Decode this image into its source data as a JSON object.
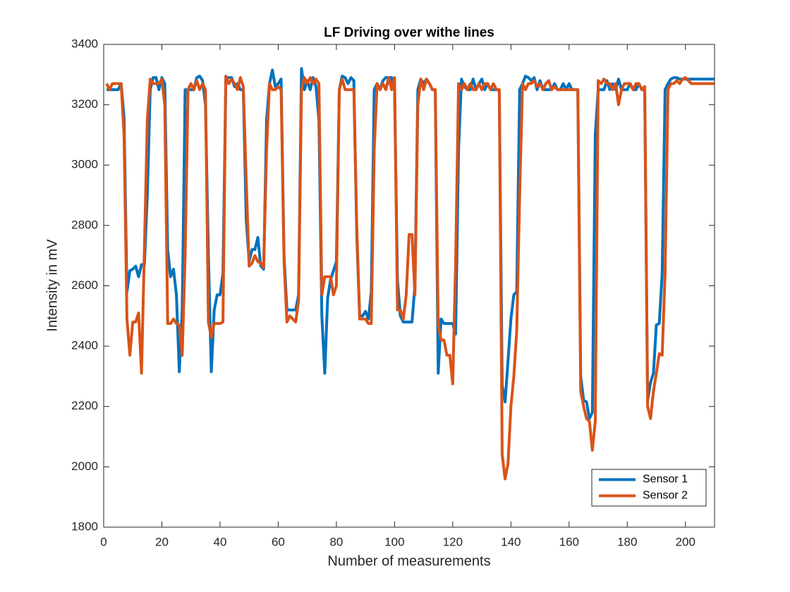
{
  "chart_data": {
    "type": "line",
    "title": "LF Driving over withe lines",
    "x_label": "Number of measurements",
    "y_label": "Intensity in mV",
    "xlim": [
      0,
      210
    ],
    "xticks": [
      0,
      20,
      40,
      60,
      80,
      100,
      120,
      140,
      160,
      180,
      200
    ],
    "ylim": [
      1800,
      3400
    ],
    "yticks": [
      1800,
      2000,
      2200,
      2400,
      2600,
      2800,
      3000,
      3200,
      3400
    ],
    "grid": false,
    "legend_position": "southeast",
    "x": [
      1,
      2,
      3,
      4,
      5,
      6,
      7,
      8,
      9,
      10,
      11,
      12,
      13,
      14,
      15,
      16,
      17,
      18,
      19,
      20,
      21,
      22,
      23,
      24,
      25,
      26,
      27,
      28,
      29,
      30,
      31,
      32,
      33,
      34,
      35,
      36,
      37,
      38,
      39,
      40,
      41,
      42,
      43,
      44,
      45,
      46,
      47,
      48,
      49,
      50,
      51,
      52,
      53,
      54,
      55,
      56,
      57,
      58,
      59,
      60,
      61,
      62,
      63,
      64,
      65,
      66,
      67,
      68,
      69,
      70,
      71,
      72,
      73,
      74,
      75,
      76,
      77,
      78,
      79,
      80,
      81,
      82,
      83,
      84,
      85,
      86,
      87,
      88,
      89,
      90,
      91,
      92,
      93,
      94,
      95,
      96,
      97,
      98,
      99,
      100,
      101,
      102,
      103,
      104,
      105,
      106,
      107,
      108,
      109,
      110,
      111,
      112,
      113,
      114,
      115,
      116,
      117,
      118,
      119,
      120,
      121,
      122,
      123,
      124,
      125,
      126,
      127,
      128,
      129,
      130,
      131,
      132,
      133,
      134,
      135,
      136,
      137,
      138,
      139,
      140,
      141,
      142,
      143,
      144,
      145,
      146,
      147,
      148,
      149,
      150,
      151,
      152,
      153,
      154,
      155,
      156,
      157,
      158,
      159,
      160,
      161,
      162,
      163,
      164,
      165,
      166,
      167,
      168,
      169,
      170,
      171,
      172,
      173,
      174,
      175,
      176,
      177,
      178,
      179,
      180,
      181,
      182,
      183,
      184,
      185,
      186,
      187,
      188,
      189,
      190,
      191,
      192,
      193,
      194,
      195,
      196,
      197,
      198,
      199,
      200,
      201,
      202,
      203,
      204,
      205,
      206,
      207,
      208,
      209,
      210
    ],
    "series": [
      {
        "name": "Sensor 1",
        "color": "#0072BD",
        "values": [
          3250,
          3250,
          3250,
          3250,
          3250,
          3270,
          3160,
          2580,
          2650,
          2655,
          2665,
          2630,
          2670,
          2670,
          2900,
          3250,
          3290,
          3290,
          3250,
          3290,
          3270,
          2720,
          2630,
          2655,
          2570,
          2315,
          2520,
          3250,
          3250,
          3250,
          3250,
          3290,
          3295,
          3280,
          3200,
          2700,
          2315,
          2520,
          2570,
          2570,
          2640,
          3290,
          3290,
          3290,
          3260,
          3270,
          3250,
          3250,
          2820,
          2680,
          2720,
          2720,
          2760,
          2665,
          2655,
          3150,
          3270,
          3315,
          3260,
          3270,
          3285,
          2700,
          2520,
          2520,
          2520,
          2520,
          2570,
          3320,
          3250,
          3280,
          3250,
          3290,
          3260,
          3150,
          2500,
          2310,
          2560,
          2620,
          2650,
          2680,
          3250,
          3295,
          3290,
          3270,
          3290,
          3280,
          2770,
          2500,
          2500,
          2515,
          2490,
          2580,
          3250,
          3270,
          3250,
          3280,
          3290,
          3290,
          3290,
          3250,
          2620,
          2500,
          2480,
          2480,
          2480,
          2480,
          2600,
          3250,
          3285,
          3270,
          3285,
          3270,
          3250,
          3250,
          2310,
          2490,
          2475,
          2475,
          2475,
          2475,
          2440,
          3050,
          3285,
          3260,
          3250,
          3250,
          3285,
          3250,
          3270,
          3285,
          3250,
          3270,
          3250,
          3250,
          3250,
          3250,
          2270,
          2215,
          2350,
          2490,
          2570,
          2580,
          3250,
          3270,
          3295,
          3290,
          3280,
          3290,
          3250,
          3280,
          3250,
          3250,
          3250,
          3250,
          3270,
          3250,
          3250,
          3270,
          3250,
          3270,
          3250,
          3250,
          3250,
          2300,
          2220,
          2215,
          2160,
          2180,
          3100,
          3250,
          3250,
          3250,
          3280,
          3250,
          3270,
          3250,
          3285,
          3250,
          3250,
          3250,
          3270,
          3250,
          3250,
          3270,
          3250,
          3250,
          2220,
          2280,
          2310,
          2470,
          2475,
          2640,
          3250,
          3270,
          3285,
          3290,
          3290,
          3285,
          3285,
          3285,
          3285,
          3285,
          3285,
          3285,
          3285,
          3285,
          3285,
          3285,
          3285,
          3285
        ]
      },
      {
        "name": "Sensor 2",
        "color": "#D95319",
        "values": [
          3270,
          3250,
          3270,
          3270,
          3270,
          3270,
          3100,
          2490,
          2370,
          2480,
          2480,
          2510,
          2310,
          2720,
          3150,
          3285,
          3270,
          3270,
          3270,
          3285,
          3200,
          2475,
          2475,
          2490,
          2475,
          2470,
          2370,
          2700,
          3250,
          3270,
          3250,
          3280,
          3250,
          3270,
          3250,
          2480,
          2430,
          2475,
          2475,
          2475,
          2480,
          3295,
          3270,
          3285,
          3270,
          3250,
          3290,
          3260,
          2950,
          2665,
          2675,
          2700,
          2680,
          2675,
          2660,
          3050,
          3270,
          3250,
          3250,
          3260,
          3250,
          2680,
          2480,
          2500,
          2490,
          2480,
          2550,
          3250,
          3290,
          3270,
          3290,
          3270,
          3285,
          3270,
          2570,
          2630,
          2630,
          2630,
          2570,
          2600,
          3250,
          3285,
          3250,
          3250,
          3250,
          3250,
          2800,
          2490,
          2490,
          2490,
          2475,
          2475,
          3050,
          3270,
          3250,
          3270,
          3250,
          3290,
          3250,
          3290,
          2520,
          2520,
          2490,
          2570,
          2770,
          2770,
          2570,
          3200,
          3285,
          3250,
          3285,
          3270,
          3250,
          3250,
          2470,
          2420,
          2420,
          2370,
          2370,
          2275,
          2680,
          3270,
          3250,
          3270,
          3250,
          3270,
          3250,
          3250,
          3270,
          3250,
          3270,
          3270,
          3250,
          3270,
          3250,
          3250,
          2040,
          1960,
          2010,
          2200,
          2300,
          2450,
          2900,
          3270,
          3250,
          3270,
          3270,
          3280,
          3260,
          3270,
          3250,
          3270,
          3280,
          3250,
          3260,
          3250,
          3250,
          3250,
          3250,
          3250,
          3250,
          3250,
          3250,
          2250,
          2200,
          2160,
          2150,
          2055,
          2150,
          3280,
          3270,
          3285,
          3270,
          3270,
          3250,
          3270,
          3200,
          3250,
          3270,
          3270,
          3270,
          3250,
          3270,
          3270,
          3250,
          3260,
          2200,
          2160,
          2250,
          2310,
          2375,
          2370,
          2640,
          3250,
          3270,
          3270,
          3280,
          3270,
          3285,
          3290,
          3280,
          3270,
          3270,
          3270,
          3270,
          3270,
          3270,
          3270,
          3270,
          3270
        ]
      }
    ]
  }
}
